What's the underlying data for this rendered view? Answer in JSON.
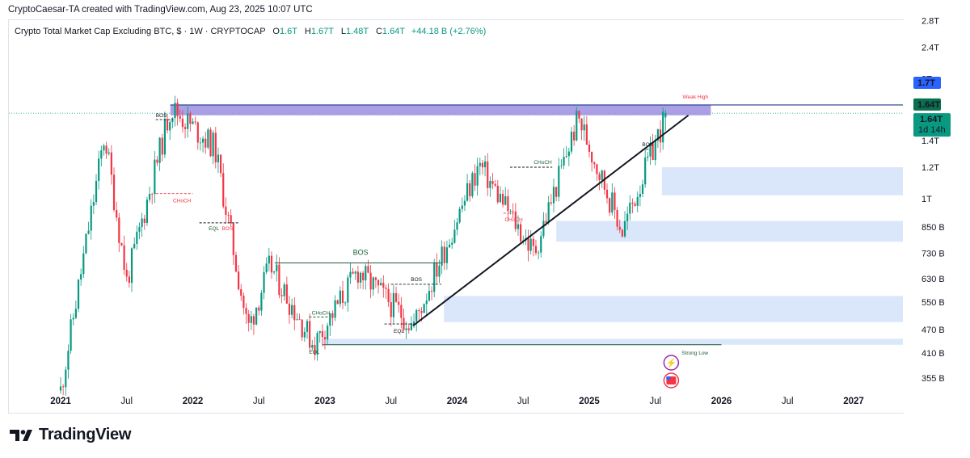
{
  "header": {
    "credit": "CryptoCaesar-TA created with TradingView.com, Aug 23, 2025 10:07 UTC"
  },
  "legend": {
    "symbol": "Crypto Total Market Cap Excluding BTC, $ · 1W · CRYPTOCAP",
    "open_label": "O",
    "open": "1.6T",
    "high_label": "H",
    "high": "1.67T",
    "low_label": "L",
    "low": "1.48T",
    "close_label": "C",
    "close": "1.64T",
    "change": "+44.18 B (+2.76%)"
  },
  "price_axis": {
    "ticks": [
      "2.8T",
      "2.4T",
      "2T",
      "1.4T",
      "1.2T",
      "1T",
      "850 B",
      "730 B",
      "630 B",
      "550 B",
      "470 B",
      "410 B",
      "355 B"
    ],
    "badge_high": "1.7T",
    "badge_last": "1.64T",
    "badge_close": "1.64T",
    "badge_countdown": "1d 14h"
  },
  "time_axis": {
    "labels": [
      "2021",
      "Jul",
      "2022",
      "Jul",
      "2023",
      "Jul",
      "2024",
      "Jul",
      "2025",
      "Jul",
      "2026",
      "Jul",
      "2027"
    ]
  },
  "annotations": {
    "weak_high": "Weak High",
    "strong_low": "Strong Low",
    "bos": "BOS",
    "choch": "CHoCH",
    "eql": "EQL"
  },
  "colors": {
    "up": "#089981",
    "down": "#f23645",
    "zone": "#d6e4fb",
    "weak_high_band": "#9c8fe0",
    "trendline": "#131722",
    "badge_blue": "#2962ff",
    "badge_dark": "#0b6e4f",
    "badge_green": "#089981"
  },
  "chart_data": {
    "type": "candlestick",
    "title": "Crypto Total Market Cap Excluding BTC, $ · 1W · CRYPTOCAP",
    "timeframe": "1W",
    "y_scale": "log",
    "ylim_usd": [
      330000000000,
      2900000000000
    ],
    "x_range": [
      "2021-01",
      "2027-04"
    ],
    "last_bar": {
      "open": 1600000000000.0,
      "high": 1670000000000.0,
      "low": 1480000000000.0,
      "close": 1640000000000.0,
      "change": 44180000000.0,
      "change_pct": 2.76
    },
    "key_points": [
      {
        "date": "2021-01",
        "value": 330000000000.0
      },
      {
        "date": "2021-05",
        "value": 1450000000000.0
      },
      {
        "date": "2021-07",
        "value": 620000000000.0
      },
      {
        "date": "2021-11",
        "value": 1700000000000.0
      },
      {
        "date": "2022-03",
        "value": 1350000000000.0
      },
      {
        "date": "2022-06",
        "value": 470000000000.0
      },
      {
        "date": "2022-08",
        "value": 680000000000.0
      },
      {
        "date": "2022-12",
        "value": 430000000000.0
      },
      {
        "date": "2023-04",
        "value": 660000000000.0
      },
      {
        "date": "2023-09",
        "value": 480000000000.0
      },
      {
        "date": "2024-03",
        "value": 1220000000000.0
      },
      {
        "date": "2024-08",
        "value": 730000000000.0
      },
      {
        "date": "2024-12",
        "value": 1600000000000.0
      },
      {
        "date": "2025-04",
        "value": 830000000000.0
      },
      {
        "date": "2025-08",
        "value": 1640000000000.0
      }
    ],
    "zones": [
      {
        "label": "Weak High",
        "from": 1620000000000.0,
        "to": 1720000000000.0
      },
      {
        "label": "",
        "from": 1020000000000.0,
        "to": 1200000000000.0
      },
      {
        "label": "",
        "from": 780000000000.0,
        "to": 880000000000.0
      },
      {
        "label": "",
        "from": 490000000000.0,
        "to": 570000000000.0
      },
      {
        "label": "Strong Low",
        "from": 430000000000.0,
        "to": 445000000000.0
      }
    ],
    "trendline": {
      "from": {
        "date": "2023-09",
        "value": 480000000000.0
      },
      "to": {
        "date": "2025-10",
        "value": 1620000000000.0
      }
    },
    "xlabel": "",
    "ylabel": ""
  }
}
